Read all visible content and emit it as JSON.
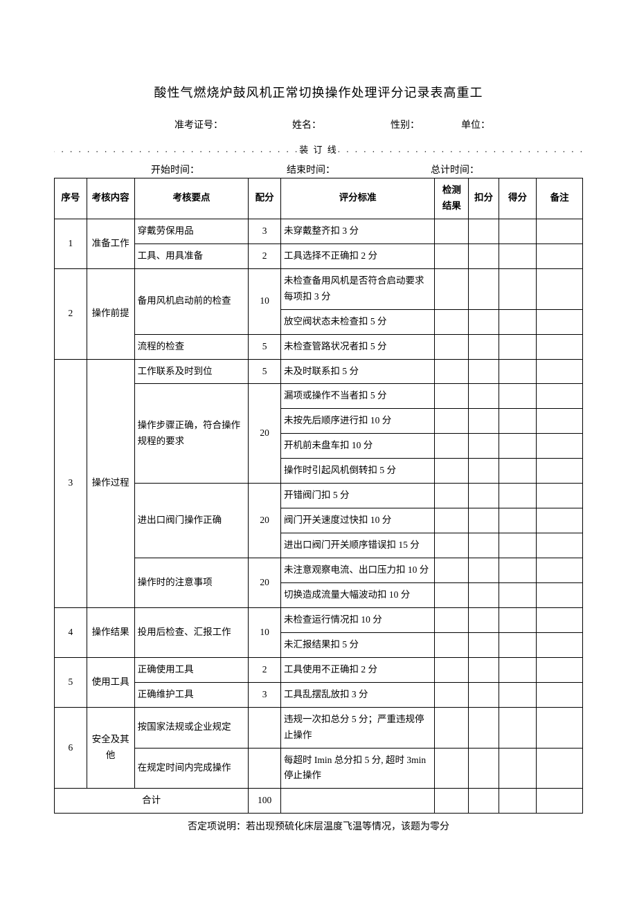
{
  "title": "酸性气燃烧炉鼓风机正常切换操作处理评分记录表高重工",
  "header_labels": {
    "exam_no": "准考证号：",
    "name": "姓名：",
    "gender": "性别：",
    "unit": "单位：",
    "binding_text": "装 订 线",
    "start_time": "开始时间：",
    "end_time": "结束时间：",
    "total_time": "总计时间："
  },
  "columns": {
    "num": "序号",
    "category": "考核内容",
    "point": "考核要点",
    "alloc": "配分",
    "criteria": "评分标准",
    "result": "检测结果",
    "kou": "扣分",
    "de": "得分",
    "note": "备注"
  },
  "rows": [
    {
      "num": "1",
      "category": "准备工作",
      "items": [
        {
          "point": "穿戴劳保用品",
          "alloc": "3",
          "crits": [
            "未穿戴整齐扣 3 分"
          ]
        },
        {
          "point": "工具、用具准备",
          "alloc": "2",
          "crits": [
            "工具选择不正确扣 2 分"
          ]
        }
      ]
    },
    {
      "num": "2",
      "category": "操作前提",
      "items": [
        {
          "point": "备用风机启动前的检查",
          "alloc": "10",
          "crits": [
            "未检查备用风机是否符合启动要求每项扣 3 分",
            "放空阀状态未检查扣 5 分"
          ]
        },
        {
          "point": "流程的检查",
          "alloc": "5",
          "crits": [
            "未检查管路状况者扣 5 分"
          ]
        }
      ]
    },
    {
      "num": "3",
      "category": "操作过程",
      "items": [
        {
          "point": "工作联系及时到位",
          "alloc": "5",
          "crits": [
            "未及时联系扣 5 分"
          ]
        },
        {
          "point": "操作步骤正确，符合操作规程的要求",
          "alloc": "20",
          "crits": [
            "漏项或操作不当者扣 5 分",
            "未按先后顺序进行扣 10 分",
            "开机前未盘车扣 10 分",
            "操作时引起风机倒转扣 5 分"
          ]
        },
        {
          "point": "进出口阀门操作正确",
          "alloc": "20",
          "crits": [
            "开错阀门扣 5 分",
            "阀门开关速度过快扣 10 分",
            "进出口阀门开关顺序错误扣 15 分"
          ]
        },
        {
          "point": "操作时的注意事项",
          "alloc": "20",
          "crits": [
            "未注意观察电流、出口压力扣 10 分",
            "切换造成流量大幅波动扣 10 分"
          ]
        }
      ]
    },
    {
      "num": "4",
      "category": "操作结果",
      "items": [
        {
          "point": "投用后检查、汇报工作",
          "alloc": "10",
          "crits": [
            "未检查运行情况扣 10 分",
            "未汇报结果扣 5 分"
          ]
        }
      ]
    },
    {
      "num": "5",
      "category": "使用工具",
      "items": [
        {
          "point": "正确使用工具",
          "alloc": "2",
          "crits": [
            "工具使用不正确扣 2 分"
          ]
        },
        {
          "point": "正确维护工具",
          "alloc": "3",
          "crits": [
            "工具乱摆乱放扣 3 分"
          ]
        }
      ]
    },
    {
      "num": "6",
      "category": "安全及其他",
      "items": [
        {
          "point": "按国家法规或企业规定",
          "alloc": "",
          "crits": [
            "违规一次扣总分 5 分；严重违规停止操作"
          ]
        },
        {
          "point": "在规定时间内完成操作",
          "alloc": "",
          "crits": [
            "每超时 Imin 总分扣 5 分, 超时 3min 停止操作"
          ]
        }
      ]
    }
  ],
  "total_label": "合计",
  "total_score": "100",
  "footnote": "否定项说明：若出现预硫化床层温度飞温等情况，该题为零分",
  "colors": {
    "background": "#ffffff",
    "text": "#000000",
    "border": "#000000"
  }
}
